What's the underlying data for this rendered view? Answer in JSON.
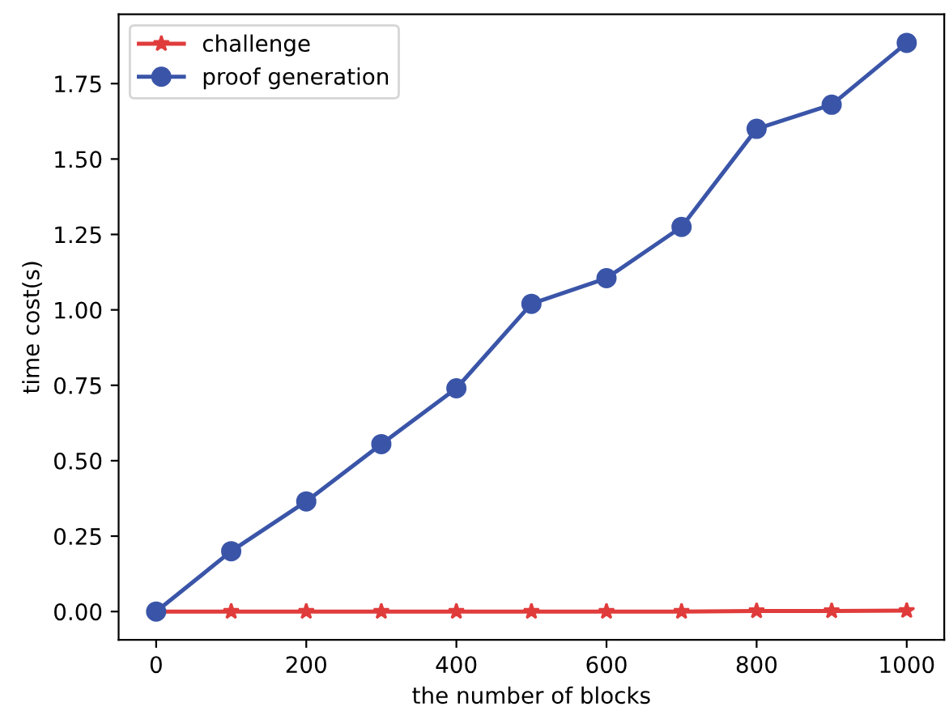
{
  "chart_data": {
    "type": "line",
    "xlabel": "the number of blocks",
    "ylabel": "time cost(s)",
    "x": [
      0,
      100,
      200,
      300,
      400,
      500,
      600,
      700,
      800,
      900,
      1000
    ],
    "series": [
      {
        "name": "challenge",
        "color": "#e03c3c",
        "marker": "star",
        "values": [
          0,
          0,
          0,
          0,
          0,
          0,
          0,
          0,
          0.002,
          0.002,
          0.003
        ]
      },
      {
        "name": "proof generation",
        "color": "#3a55a8",
        "marker": "circle",
        "values": [
          0,
          0.2,
          0.365,
          0.555,
          0.74,
          1.02,
          1.105,
          1.275,
          1.6,
          1.68,
          1.885
        ]
      }
    ],
    "xlim": [
      -50,
      1050
    ],
    "xticks": [
      0,
      200,
      400,
      600,
      800,
      1000
    ],
    "ylim": [
      -0.094,
      1.98
    ],
    "yticks": [
      {
        "value": 0,
        "label": "0.00"
      },
      {
        "value": 0.25,
        "label": "0.25"
      },
      {
        "value": 0.5,
        "label": "0.50"
      },
      {
        "value": 0.75,
        "label": "0.75"
      },
      {
        "value": 1.0,
        "label": "1.00"
      },
      {
        "value": 1.25,
        "label": "1.25"
      },
      {
        "value": 1.5,
        "label": "1.50"
      },
      {
        "value": 1.75,
        "label": "1.75"
      }
    ],
    "grid": false,
    "legend": "top left",
    "line_style": "solid"
  }
}
